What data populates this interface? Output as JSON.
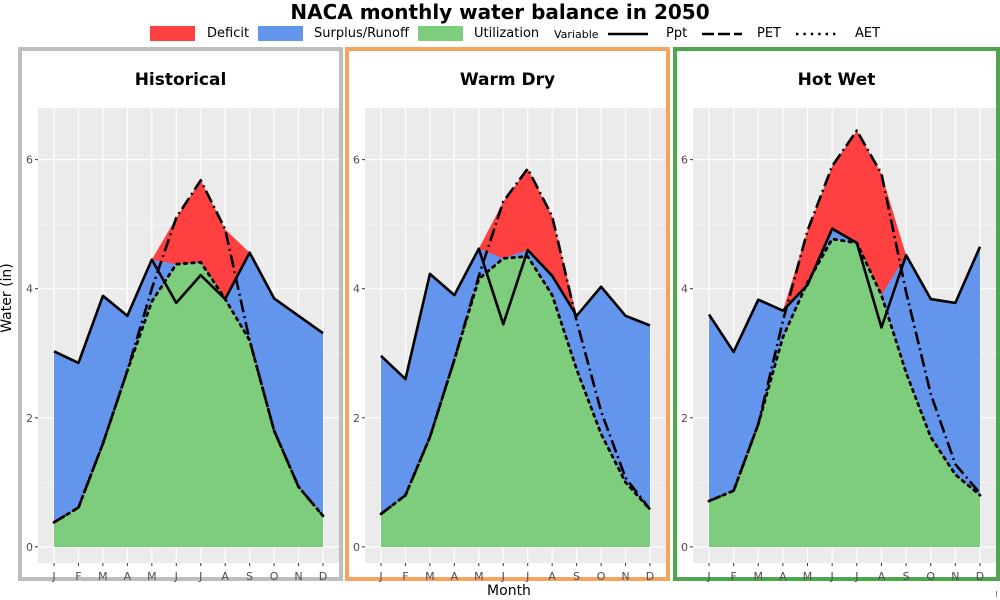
{
  "title": "NACA monthly water balance in 2050",
  "axis": {
    "x_label": "Month",
    "y_label": "Water (in)"
  },
  "legend": {
    "fill_items": [
      {
        "label": "Deficit",
        "color": "#ff4040"
      },
      {
        "label": "Surplus/Runoff",
        "color": "#6495ed"
      },
      {
        "label": "Utilization",
        "color": "#7dcd7d"
      }
    ],
    "line_title": "Variable",
    "line_items": [
      {
        "label": "Ppt",
        "style": "solid"
      },
      {
        "label": "PET",
        "style": "longdash"
      },
      {
        "label": "AET",
        "style": "dotted"
      }
    ]
  },
  "chart_data": {
    "type": "area",
    "months": [
      "J",
      "F",
      "M",
      "A",
      "M",
      "J",
      "J",
      "A",
      "S",
      "O",
      "N",
      "D"
    ],
    "y_ticks": [
      0,
      2,
      4,
      6
    ],
    "ylim": [
      -0.25,
      6.8
    ],
    "grid": true,
    "legend_position": "top",
    "panels": [
      {
        "title": "Historical",
        "border_color": "#bebebe",
        "ppt": [
          3.03,
          2.85,
          3.89,
          3.58,
          4.45,
          3.78,
          4.21,
          3.84,
          4.56,
          3.85,
          3.58,
          3.31
        ],
        "pet": [
          0.38,
          0.61,
          1.6,
          2.73,
          4.0,
          5.1,
          5.68,
          4.92,
          3.2,
          1.8,
          0.93,
          0.48
        ],
        "aet": [
          0.38,
          0.61,
          1.6,
          2.73,
          3.8,
          4.38,
          4.41,
          3.84,
          3.2,
          1.8,
          0.93,
          0.48
        ]
      },
      {
        "title": "Warm Dry",
        "border_color": "#f4a460",
        "ppt": [
          2.96,
          2.6,
          4.23,
          3.9,
          4.62,
          3.45,
          4.6,
          4.2,
          3.58,
          4.03,
          3.58,
          3.43
        ],
        "pet": [
          0.51,
          0.8,
          1.7,
          2.9,
          4.2,
          5.35,
          5.86,
          5.12,
          3.5,
          2.1,
          1.07,
          0.58
        ],
        "aet": [
          0.51,
          0.8,
          1.7,
          2.9,
          4.15,
          4.47,
          4.5,
          3.9,
          2.75,
          1.75,
          1.0,
          0.58
        ]
      },
      {
        "title": "Hot Wet",
        "border_color": "#4ea64e",
        "ppt": [
          3.6,
          3.02,
          3.83,
          3.66,
          4.06,
          4.93,
          4.71,
          3.4,
          4.52,
          3.84,
          3.78,
          4.65
        ],
        "pet": [
          0.71,
          0.87,
          1.9,
          3.5,
          4.9,
          5.9,
          6.45,
          5.78,
          3.95,
          2.37,
          1.28,
          0.83
        ],
        "aet": [
          0.71,
          0.87,
          1.9,
          3.25,
          4.1,
          4.77,
          4.71,
          3.9,
          2.7,
          1.7,
          1.12,
          0.8
        ]
      }
    ]
  }
}
